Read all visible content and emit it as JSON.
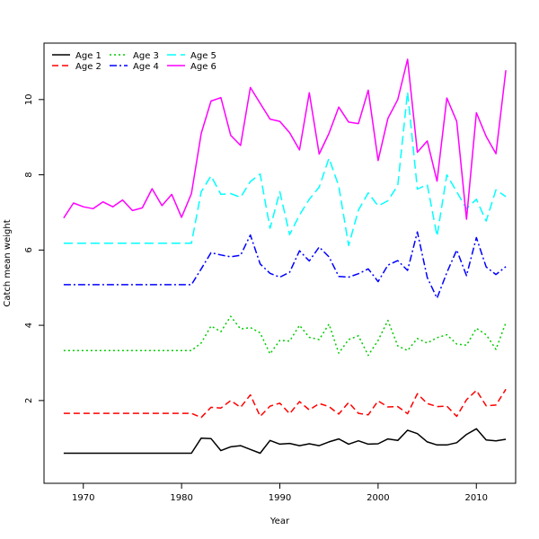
{
  "chart_data": {
    "type": "line",
    "xlabel": "Year",
    "ylabel": "Catch mean weight",
    "xlim": [
      1966,
      2014
    ],
    "ylim": [
      -0.2,
      11.5
    ],
    "xticks": [
      1970,
      1980,
      1990,
      2000,
      2010
    ],
    "yticks": [
      2,
      4,
      6,
      8,
      10
    ],
    "grid": false,
    "legend_position": "top-left",
    "x": [
      1968,
      1969,
      1970,
      1971,
      1972,
      1973,
      1974,
      1975,
      1976,
      1977,
      1978,
      1979,
      1980,
      1981,
      1982,
      1983,
      1984,
      1985,
      1986,
      1987,
      1988,
      1989,
      1990,
      1991,
      1992,
      1993,
      1994,
      1995,
      1996,
      1997,
      1998,
      1999,
      2000,
      2001,
      2002,
      2003,
      2004,
      2005,
      2006,
      2007,
      2008,
      2009,
      2010,
      2011,
      2012,
      2013
    ],
    "series": [
      {
        "name": "Age 1",
        "color": "#000000",
        "dash": "",
        "values": [
          0.6,
          0.6,
          0.6,
          0.6,
          0.6,
          0.6,
          0.6,
          0.6,
          0.6,
          0.6,
          0.6,
          0.6,
          0.6,
          0.6,
          1.0,
          0.99,
          0.67,
          0.77,
          0.8,
          0.7,
          0.6,
          0.94,
          0.84,
          0.86,
          0.8,
          0.85,
          0.8,
          0.9,
          0.98,
          0.84,
          0.93,
          0.84,
          0.85,
          0.98,
          0.94,
          1.21,
          1.12,
          0.9,
          0.82,
          0.82,
          0.88,
          1.1,
          1.25,
          0.95,
          0.93,
          0.97
        ]
      },
      {
        "name": "Age 2",
        "color": "#ff0000",
        "dash": "7,4",
        "values": [
          1.66,
          1.66,
          1.66,
          1.66,
          1.66,
          1.66,
          1.66,
          1.66,
          1.66,
          1.66,
          1.66,
          1.66,
          1.66,
          1.66,
          1.55,
          1.82,
          1.8,
          2.0,
          1.82,
          2.15,
          1.58,
          1.85,
          1.93,
          1.65,
          1.97,
          1.75,
          1.92,
          1.84,
          1.64,
          1.95,
          1.66,
          1.62,
          1.99,
          1.83,
          1.84,
          1.65,
          2.18,
          1.92,
          1.84,
          1.85,
          1.58,
          2.02,
          2.27,
          1.86,
          1.88,
          2.3
        ]
      },
      {
        "name": "Age 3",
        "color": "#00cc00",
        "dash": "2,3",
        "values": [
          3.33,
          3.33,
          3.33,
          3.33,
          3.33,
          3.33,
          3.33,
          3.33,
          3.33,
          3.33,
          3.33,
          3.33,
          3.33,
          3.33,
          3.53,
          3.98,
          3.83,
          4.24,
          3.9,
          3.94,
          3.8,
          3.24,
          3.6,
          3.58,
          4.0,
          3.68,
          3.62,
          4.03,
          3.26,
          3.62,
          3.72,
          3.2,
          3.6,
          4.13,
          3.45,
          3.33,
          3.65,
          3.53,
          3.67,
          3.75,
          3.5,
          3.47,
          3.92,
          3.75,
          3.36,
          4.07
        ]
      },
      {
        "name": "Age 4",
        "color": "#0000ff",
        "dash": "8,3,2,3",
        "values": [
          5.08,
          5.08,
          5.08,
          5.08,
          5.08,
          5.08,
          5.08,
          5.08,
          5.08,
          5.08,
          5.08,
          5.08,
          5.08,
          5.08,
          5.5,
          5.93,
          5.87,
          5.82,
          5.86,
          6.4,
          5.63,
          5.38,
          5.28,
          5.41,
          5.98,
          5.71,
          6.08,
          5.82,
          5.3,
          5.28,
          5.37,
          5.5,
          5.16,
          5.6,
          5.72,
          5.46,
          6.48,
          5.27,
          4.72,
          5.4,
          6.0,
          5.32,
          6.33,
          5.55,
          5.35,
          5.56
        ]
      },
      {
        "name": "Age 5",
        "color": "#00ffff",
        "dash": "10,5",
        "values": [
          6.18,
          6.18,
          6.18,
          6.18,
          6.18,
          6.18,
          6.18,
          6.18,
          6.18,
          6.18,
          6.18,
          6.18,
          6.18,
          6.18,
          7.55,
          7.97,
          7.48,
          7.5,
          7.4,
          7.82,
          8.02,
          6.58,
          7.55,
          6.41,
          6.93,
          7.35,
          7.67,
          8.44,
          7.7,
          6.12,
          7.06,
          7.52,
          7.17,
          7.31,
          7.72,
          10.2,
          7.62,
          7.74,
          6.37,
          8.0,
          7.55,
          7.1,
          7.35,
          6.77,
          7.6,
          7.42
        ]
      },
      {
        "name": "Age 6",
        "color": "#ff00ff",
        "dash": "",
        "values": [
          6.85,
          7.25,
          7.15,
          7.1,
          7.28,
          7.15,
          7.33,
          7.05,
          7.12,
          7.63,
          7.18,
          7.48,
          6.87,
          7.5,
          9.1,
          9.96,
          10.05,
          9.05,
          8.78,
          10.32,
          9.9,
          9.48,
          9.42,
          9.12,
          8.66,
          10.18,
          8.55,
          9.1,
          9.8,
          9.4,
          9.36,
          10.25,
          8.38,
          9.5,
          10.0,
          11.07,
          8.6,
          8.9,
          7.83,
          10.04,
          9.42,
          6.82,
          9.65,
          9.02,
          8.56,
          10.78
        ]
      }
    ]
  }
}
